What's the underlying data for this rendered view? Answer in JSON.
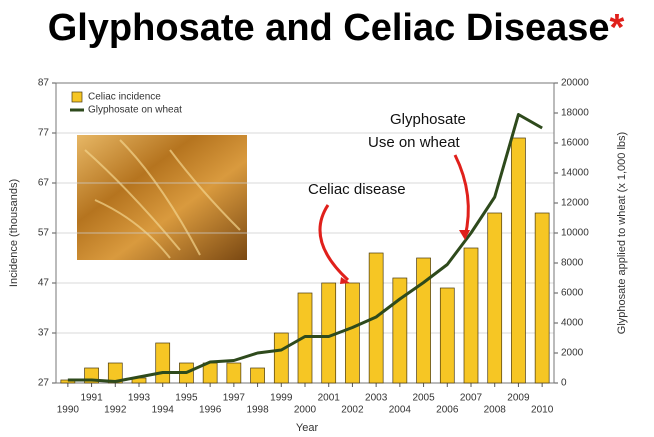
{
  "chart_data": {
    "type": "bar_line",
    "title": "Glyphosate and Celiac Disease",
    "title_mark": "*",
    "x_label": "Year",
    "y_label": "Incidence (thousands)",
    "y2_label": "Glyphosate applied to wheat (x 1,000 lbs)",
    "annotations": [
      "Celiac disease",
      "Glyphosate",
      "Use on wheat"
    ],
    "categories": [
      1990,
      1991,
      1992,
      1993,
      1994,
      1995,
      1996,
      1997,
      1998,
      1999,
      2000,
      2001,
      2002,
      2003,
      2004,
      2005,
      2006,
      2007,
      2008,
      2009,
      2010
    ],
    "series": [
      {
        "name": "Celiac incidence",
        "type": "bar",
        "color": "#f6c624",
        "values": [
          27.6,
          30,
          31,
          28,
          35,
          31,
          31,
          31,
          30,
          37,
          45,
          47,
          47,
          53,
          48,
          52,
          46,
          54,
          61,
          76,
          61
        ]
      },
      {
        "name": "Glyphosate on wheat",
        "type": "line",
        "axis": "y2",
        "color": "#2e4a1c",
        "values": [
          200,
          200,
          100,
          400,
          700,
          700,
          1400,
          1500,
          2000,
          2200,
          3100,
          3100,
          3700,
          4400,
          5600,
          6700,
          7900,
          10000,
          12400,
          17900,
          17000
        ]
      }
    ],
    "ylim": [
      27,
      87
    ],
    "yticks": [
      27,
      37,
      47,
      57,
      67,
      77,
      87
    ],
    "y2lim": [
      0,
      20000
    ],
    "y2ticks": [
      0,
      2000,
      4000,
      6000,
      8000,
      10000,
      12000,
      14000,
      16000,
      18000,
      20000
    ],
    "legend": "upper left"
  }
}
